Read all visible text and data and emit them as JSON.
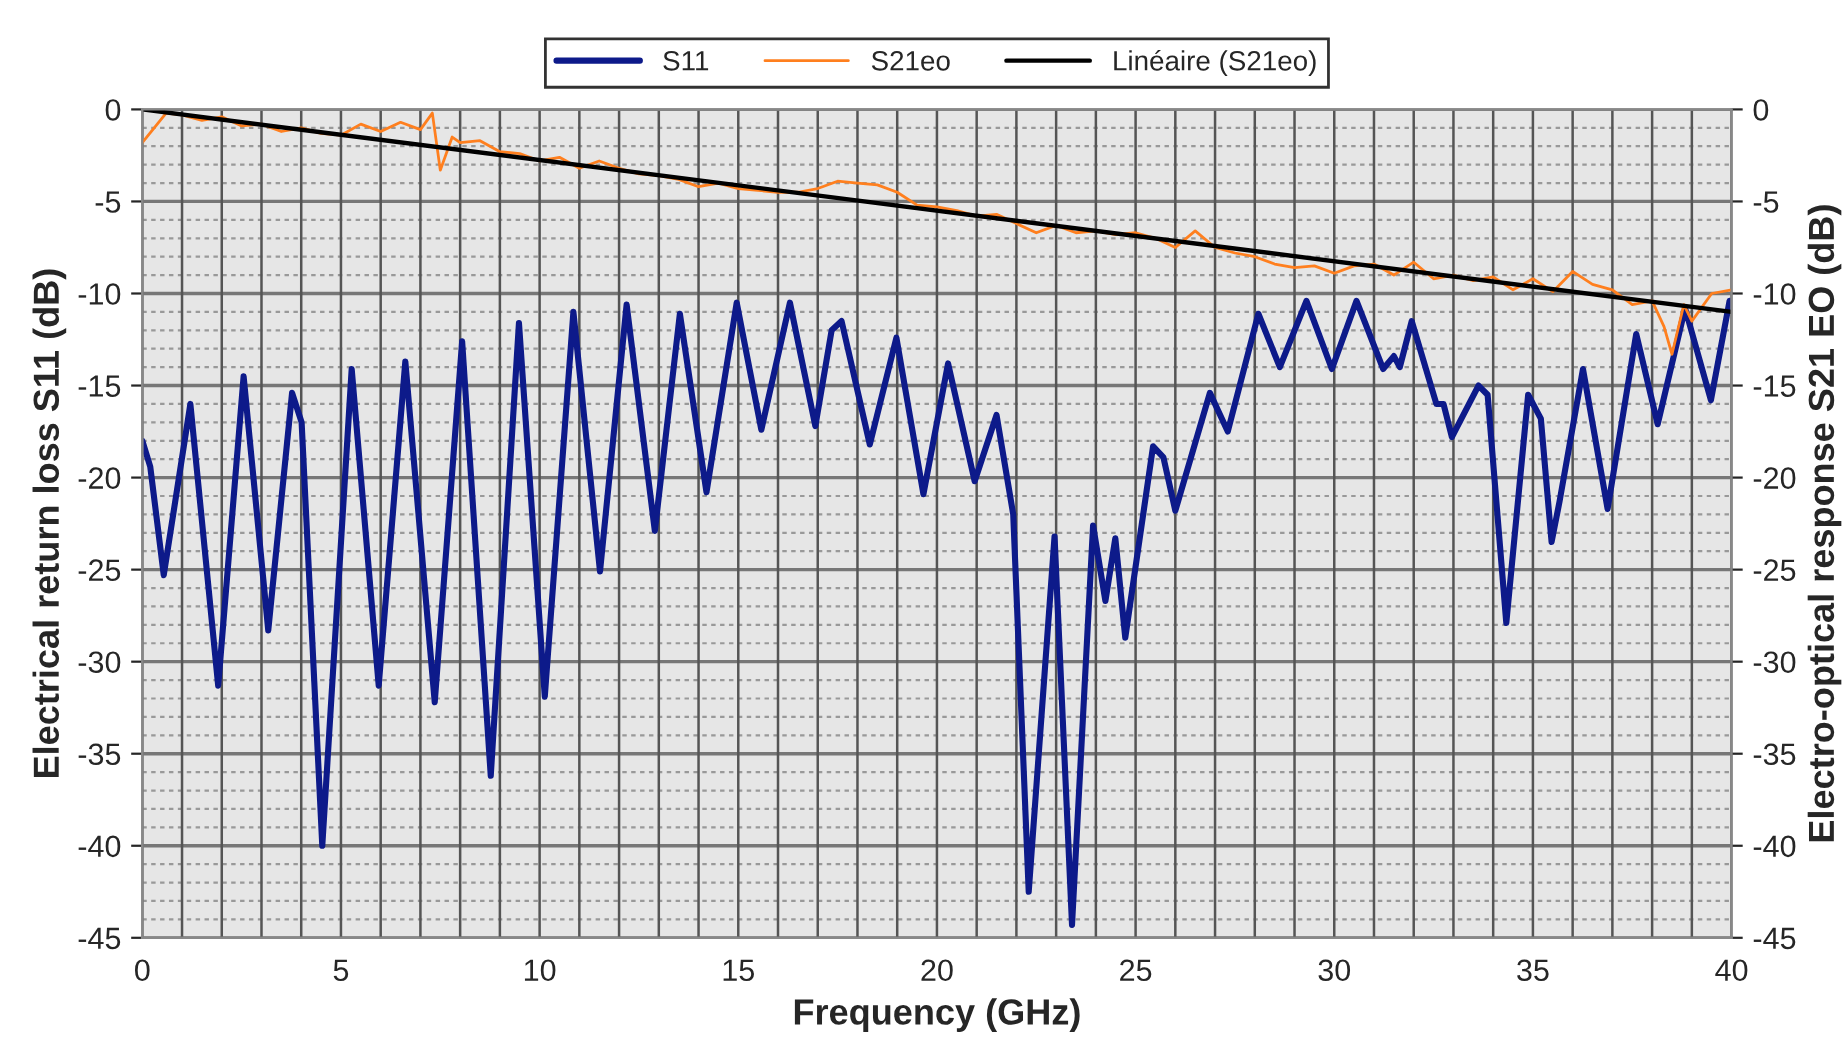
{
  "chart_data": {
    "type": "line",
    "xlabel": "Frequency (GHz)",
    "ylabel": "Electrical return loss S11 (dB)",
    "y2label": "Electro-optical response S21 EO (dB)",
    "xlim": [
      0,
      40
    ],
    "ylim": [
      -45,
      0
    ],
    "y2lim": [
      -45,
      0
    ],
    "xticks": [
      0,
      {
        "value": 1,
        "label": null
      },
      {
        "value": 2,
        "label": null
      },
      {
        "value": 3,
        "label": null
      },
      {
        "value": 4,
        "label": null
      },
      5,
      {
        "value": 6,
        "label": null
      },
      {
        "value": 7,
        "label": null
      },
      {
        "value": 8,
        "label": null
      },
      {
        "value": 9,
        "label": null
      },
      10,
      {
        "value": 11,
        "label": null
      },
      {
        "value": 12,
        "label": null
      },
      {
        "value": 13,
        "label": null
      },
      {
        "value": 14,
        "label": null
      },
      15,
      {
        "value": 16,
        "label": null
      },
      {
        "value": 17,
        "label": null
      },
      {
        "value": 18,
        "label": null
      },
      {
        "value": 19,
        "label": null
      },
      20,
      {
        "value": 21,
        "label": null
      },
      {
        "value": 22,
        "label": null
      },
      {
        "value": 23,
        "label": null
      },
      {
        "value": 24,
        "label": null
      },
      25,
      {
        "value": 26,
        "label": null
      },
      {
        "value": 27,
        "label": null
      },
      {
        "value": 28,
        "label": null
      },
      {
        "value": 29,
        "label": null
      },
      30,
      {
        "value": 31,
        "label": null
      },
      {
        "value": 32,
        "label": null
      },
      {
        "value": 33,
        "label": null
      },
      {
        "value": 34,
        "label": null
      },
      35,
      {
        "value": 36,
        "label": null
      },
      {
        "value": 37,
        "label": null
      },
      {
        "value": 38,
        "label": null
      },
      {
        "value": 39,
        "label": null
      },
      40
    ],
    "yticks": [
      -45,
      -40,
      -35,
      -30,
      -25,
      -20,
      -15,
      -10,
      -5,
      0
    ],
    "y2ticks": [
      -45,
      -40,
      -35,
      -30,
      -25,
      -20,
      -15,
      -10,
      -5,
      0
    ],
    "grid": true,
    "legend": "top",
    "line_style": "solid",
    "marker": "none",
    "series": [
      {
        "name": "S11",
        "color": "#0d1a8a",
        "x": [
          0,
          0.2,
          0.54,
          1.21,
          1.91,
          2.55,
          3.17,
          3.77,
          4.01,
          4.53,
          5.27,
          5.95,
          6.62,
          7.36,
          8.05,
          8.77,
          9.48,
          10.13,
          10.85,
          11.52,
          12.19,
          12.9,
          13.53,
          14.2,
          14.96,
          15.58,
          16.3,
          16.94,
          17.35,
          17.6,
          18.31,
          18.98,
          19.66,
          20.28,
          20.95,
          21.5,
          21.92,
          22.31,
          22.96,
          23.4,
          23.93,
          24.24,
          24.49,
          24.74,
          25.44,
          25.7,
          26.0,
          26.87,
          27.32,
          28.09,
          28.63,
          29.3,
          29.94,
          30.56,
          31.23,
          31.5,
          31.65,
          31.95,
          32.57,
          32.75,
          32.96,
          33.63,
          33.86,
          34.33,
          34.88,
          35.2,
          35.47,
          35.67,
          36.26,
          36.88,
          37.6,
          38.14,
          38.83,
          39.48,
          39.95
        ],
        "values": [
          -18.0,
          -19.4,
          -25.3,
          -16.0,
          -31.3,
          -14.5,
          -28.3,
          -15.4,
          -17.0,
          -40.0,
          -14.1,
          -31.3,
          -13.7,
          -32.2,
          -12.6,
          -36.2,
          -11.6,
          -31.9,
          -11.0,
          -25.1,
          -10.6,
          -22.9,
          -11.1,
          -20.8,
          -10.5,
          -17.4,
          -10.5,
          -17.2,
          -12.0,
          -11.5,
          -18.2,
          -12.4,
          -20.9,
          -13.8,
          -20.2,
          -16.6,
          -22.0,
          -42.5,
          -23.2,
          -44.3,
          -22.6,
          -26.7,
          -23.3,
          -28.7,
          -18.3,
          -18.9,
          -21.8,
          -15.4,
          -17.5,
          -11.1,
          -14.0,
          -10.4,
          -14.1,
          -10.4,
          -14.1,
          -13.4,
          -14.0,
          -11.5,
          -16.0,
          -16.0,
          -17.8,
          -15.0,
          -15.5,
          -27.9,
          -15.5,
          -16.8,
          -23.5,
          -21.3,
          -14.1,
          -21.7,
          -12.2,
          -17.1,
          -10.8,
          -15.8,
          -10.4
        ]
      },
      {
        "name": "S21eo",
        "color": "#ff7f1e",
        "axis": "y2",
        "x": [
          0,
          0.3,
          0.6,
          1,
          1.5,
          2,
          2.5,
          3,
          3.5,
          4,
          4.5,
          5,
          5.5,
          6,
          6.5,
          7,
          7.3,
          7.5,
          7.8,
          8,
          8.5,
          9,
          9.5,
          10,
          10.5,
          11,
          11.5,
          12,
          12.5,
          13,
          13.5,
          14,
          14.5,
          15,
          15.5,
          16,
          16.5,
          17,
          17.5,
          18,
          18.5,
          19,
          19.5,
          20,
          20.5,
          21,
          21.5,
          22,
          22.5,
          23,
          23.5,
          24,
          24.5,
          25,
          25.5,
          26,
          26.5,
          27,
          27.5,
          28,
          28.5,
          29,
          29.5,
          30,
          30.5,
          31,
          31.5,
          32,
          32.5,
          33,
          33.5,
          34,
          34.5,
          35,
          35.5,
          36,
          36.5,
          37,
          37.5,
          38,
          38.3,
          38.5,
          38.8,
          39,
          39.5,
          40
        ],
        "values": [
          -1.8,
          -1.0,
          -0.2,
          -0.3,
          -0.6,
          -0.4,
          -0.9,
          -0.8,
          -1.2,
          -1.0,
          -1.3,
          -1.4,
          -0.8,
          -1.2,
          -0.7,
          -1.1,
          -0.2,
          -3.3,
          -1.5,
          -1.8,
          -1.7,
          -2.3,
          -2.4,
          -2.8,
          -2.6,
          -3.2,
          -2.8,
          -3.2,
          -3.5,
          -3.6,
          -3.8,
          -4.2,
          -4.0,
          -4.3,
          -4.4,
          -4.5,
          -4.5,
          -4.3,
          -3.9,
          -4.0,
          -4.1,
          -4.5,
          -5.2,
          -5.3,
          -5.5,
          -5.8,
          -5.7,
          -6.2,
          -6.7,
          -6.3,
          -6.7,
          -6.6,
          -6.8,
          -6.7,
          -7.0,
          -7.5,
          -6.6,
          -7.5,
          -7.8,
          -8.0,
          -8.4,
          -8.6,
          -8.5,
          -8.9,
          -8.5,
          -8.4,
          -9.0,
          -8.3,
          -9.2,
          -9.0,
          -9.3,
          -9.1,
          -9.8,
          -9.2,
          -9.9,
          -8.8,
          -9.5,
          -9.8,
          -10.6,
          -10.4,
          -11.8,
          -13.3,
          -10.6,
          -11.5,
          -10.0,
          -9.8
        ]
      },
      {
        "name": "Linéaire (S21eo)",
        "color": "#000000",
        "axis": "y2",
        "x": [
          0,
          40
        ],
        "values": [
          0.0,
          -11.0
        ]
      }
    ]
  }
}
